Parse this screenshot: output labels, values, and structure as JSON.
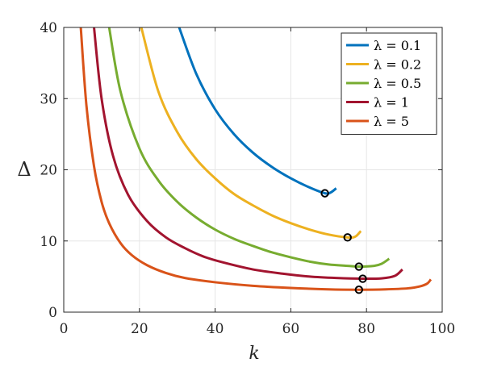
{
  "chart_data": {
    "type": "line",
    "xlabel": "k",
    "ylabel": "Δ",
    "xlim": [
      0,
      100
    ],
    "ylim": [
      0,
      40
    ],
    "xticks": [
      0,
      20,
      40,
      60,
      80,
      100
    ],
    "yticks": [
      0,
      10,
      20,
      30,
      40
    ],
    "grid": true,
    "legend_position": "top-right",
    "series": [
      {
        "name": "λ = 0.1",
        "color": "#0072BD",
        "points": [
          [
            30.5,
            40
          ],
          [
            35,
            33.5
          ],
          [
            40,
            28.5
          ],
          [
            45,
            25
          ],
          [
            50,
            22.4
          ],
          [
            55,
            20.4
          ],
          [
            60,
            18.8
          ],
          [
            65,
            17.5
          ],
          [
            69,
            16.7
          ],
          [
            70.5,
            16.8
          ],
          [
            72,
            17.4
          ]
        ],
        "min_marker": [
          69,
          16.7
        ]
      },
      {
        "name": "λ = 0.2",
        "color": "#EDB120",
        "points": [
          [
            20.5,
            40
          ],
          [
            25,
            31
          ],
          [
            30,
            25.3
          ],
          [
            35,
            21.5
          ],
          [
            40,
            18.8
          ],
          [
            45,
            16.6
          ],
          [
            50,
            15
          ],
          [
            55,
            13.6
          ],
          [
            60,
            12.5
          ],
          [
            65,
            11.6
          ],
          [
            70,
            10.9
          ],
          [
            75,
            10.5
          ],
          [
            77,
            10.6
          ],
          [
            78.5,
            11.4
          ]
        ],
        "min_marker": [
          75,
          10.5
        ]
      },
      {
        "name": "λ = 0.5",
        "color": "#77AC30",
        "points": [
          [
            12,
            40
          ],
          [
            15,
            31
          ],
          [
            20,
            23
          ],
          [
            25,
            18.5
          ],
          [
            30,
            15.5
          ],
          [
            35,
            13.3
          ],
          [
            40,
            11.6
          ],
          [
            45,
            10.3
          ],
          [
            50,
            9.3
          ],
          [
            55,
            8.4
          ],
          [
            60,
            7.7
          ],
          [
            65,
            7.1
          ],
          [
            70,
            6.7
          ],
          [
            75,
            6.5
          ],
          [
            78,
            6.4
          ],
          [
            82,
            6.5
          ],
          [
            84,
            6.8
          ],
          [
            86,
            7.5
          ]
        ],
        "min_marker": [
          78,
          6.4
        ]
      },
      {
        "name": "λ = 1",
        "color": "#A2142F",
        "points": [
          [
            8,
            40
          ],
          [
            10,
            30
          ],
          [
            13,
            22
          ],
          [
            17,
            16.5
          ],
          [
            22,
            12.8
          ],
          [
            27,
            10.5
          ],
          [
            32,
            9
          ],
          [
            37,
            7.8
          ],
          [
            42,
            7
          ],
          [
            50,
            6
          ],
          [
            58,
            5.4
          ],
          [
            65,
            5
          ],
          [
            72,
            4.8
          ],
          [
            79,
            4.7
          ],
          [
            84,
            4.75
          ],
          [
            87.5,
            5.1
          ],
          [
            89.5,
            6
          ]
        ],
        "min_marker": [
          79,
          4.7
        ]
      },
      {
        "name": "λ = 5",
        "color": "#D95319",
        "points": [
          [
            4.5,
            40
          ],
          [
            6,
            29
          ],
          [
            8,
            20.5
          ],
          [
            10,
            15.5
          ],
          [
            12,
            12.5
          ],
          [
            15,
            9.7
          ],
          [
            18,
            8
          ],
          [
            22,
            6.6
          ],
          [
            27,
            5.5
          ],
          [
            32,
            4.8
          ],
          [
            40,
            4.2
          ],
          [
            50,
            3.7
          ],
          [
            60,
            3.4
          ],
          [
            70,
            3.2
          ],
          [
            78,
            3.15
          ],
          [
            85,
            3.2
          ],
          [
            91,
            3.35
          ],
          [
            94,
            3.6
          ],
          [
            96,
            4
          ],
          [
            97,
            4.6
          ]
        ],
        "min_marker": [
          78,
          3.15
        ]
      }
    ]
  }
}
